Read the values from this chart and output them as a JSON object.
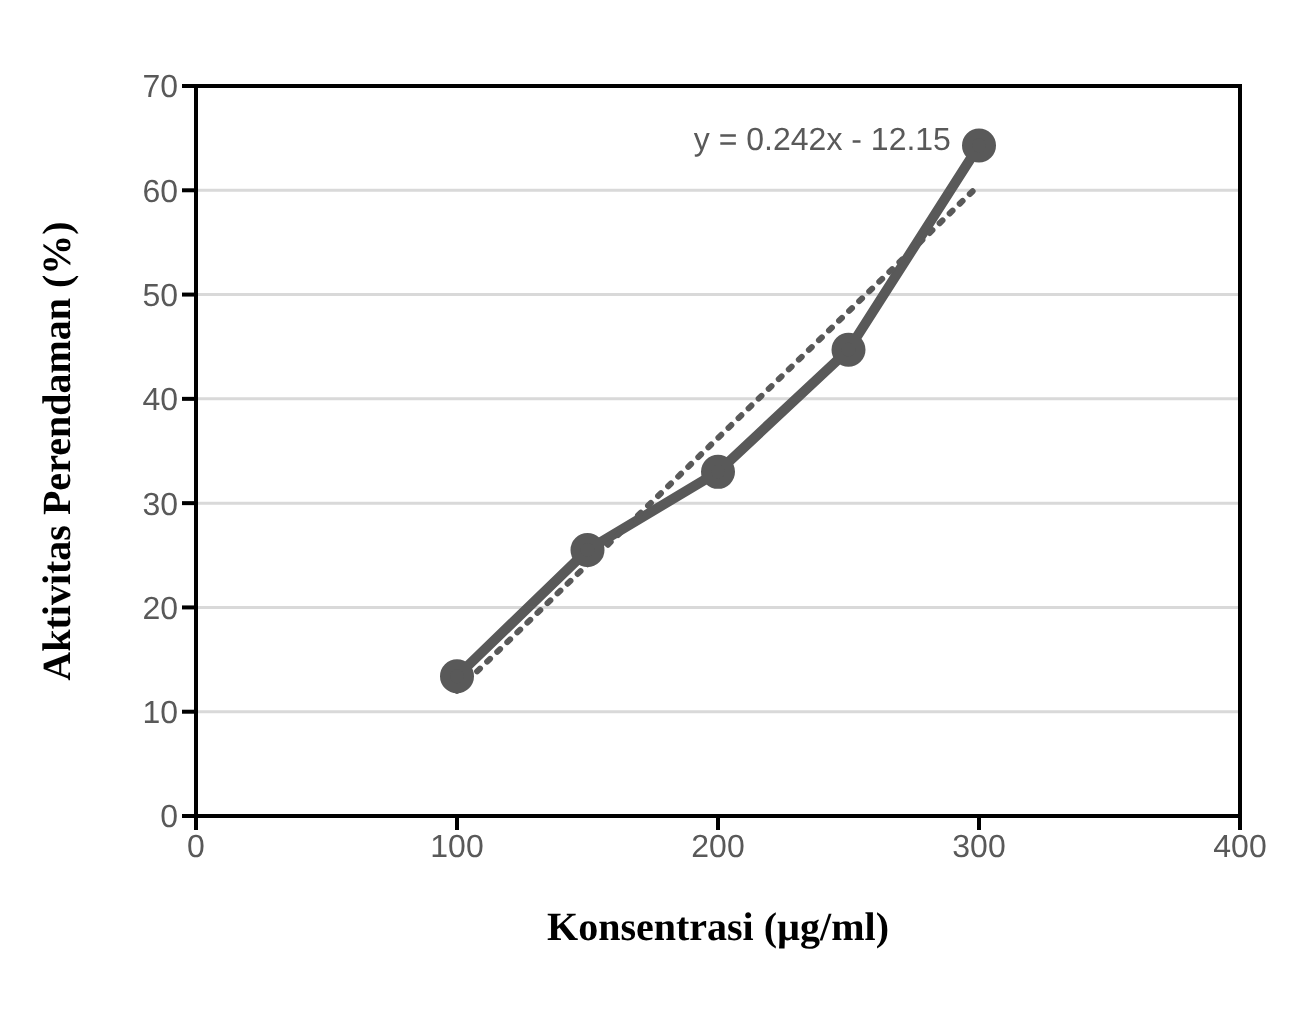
{
  "chart_data": {
    "type": "line",
    "xlabel": "Konsentrasi (µg/ml)",
    "ylabel": "Aktivitas Perendaman (%)",
    "x": [
      100,
      150,
      200,
      250,
      300
    ],
    "series": [
      {
        "color": "#595959",
        "values": [
          13.4,
          25.5,
          33.0,
          44.7,
          64.3
        ],
        "marker": "circle",
        "line_style": "solid"
      },
      {
        "type": "line",
        "x": [
          100,
          300
        ],
        "values": [
          12.0,
          60.5
        ],
        "color": "#595959",
        "marker": "none",
        "line_style": "dotted"
      }
    ],
    "annotations": [
      "y = 0.242x - 12.15"
    ],
    "xlim": [
      0,
      400
    ],
    "xticks": [
      0,
      100,
      200,
      300,
      400
    ],
    "ylim": [
      0,
      70
    ],
    "yticks": [
      0,
      10,
      20,
      30,
      40,
      50,
      60,
      70
    ],
    "grid": "y"
  }
}
